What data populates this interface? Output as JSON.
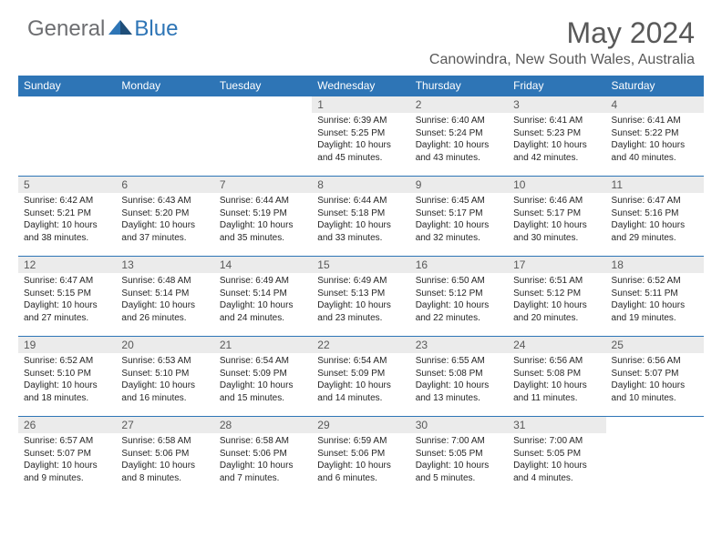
{
  "logo": {
    "general": "General",
    "blue": "Blue"
  },
  "title": "May 2024",
  "location": "Canowindra, New South Wales, Australia",
  "colors": {
    "header_bg": "#2e75b6",
    "header_text": "#ffffff",
    "daynum_bg": "#ebebeb",
    "daynum_text": "#595959",
    "title_text": "#595959",
    "body_text": "#262626",
    "border": "#2e75b6"
  },
  "weekdays": [
    "Sunday",
    "Monday",
    "Tuesday",
    "Wednesday",
    "Thursday",
    "Friday",
    "Saturday"
  ],
  "first_day_index": 3,
  "days": [
    {
      "n": "1",
      "sunrise": "6:39 AM",
      "sunset": "5:25 PM",
      "daylight": "10 hours and 45 minutes."
    },
    {
      "n": "2",
      "sunrise": "6:40 AM",
      "sunset": "5:24 PM",
      "daylight": "10 hours and 43 minutes."
    },
    {
      "n": "3",
      "sunrise": "6:41 AM",
      "sunset": "5:23 PM",
      "daylight": "10 hours and 42 minutes."
    },
    {
      "n": "4",
      "sunrise": "6:41 AM",
      "sunset": "5:22 PM",
      "daylight": "10 hours and 40 minutes."
    },
    {
      "n": "5",
      "sunrise": "6:42 AM",
      "sunset": "5:21 PM",
      "daylight": "10 hours and 38 minutes."
    },
    {
      "n": "6",
      "sunrise": "6:43 AM",
      "sunset": "5:20 PM",
      "daylight": "10 hours and 37 minutes."
    },
    {
      "n": "7",
      "sunrise": "6:44 AM",
      "sunset": "5:19 PM",
      "daylight": "10 hours and 35 minutes."
    },
    {
      "n": "8",
      "sunrise": "6:44 AM",
      "sunset": "5:18 PM",
      "daylight": "10 hours and 33 minutes."
    },
    {
      "n": "9",
      "sunrise": "6:45 AM",
      "sunset": "5:17 PM",
      "daylight": "10 hours and 32 minutes."
    },
    {
      "n": "10",
      "sunrise": "6:46 AM",
      "sunset": "5:17 PM",
      "daylight": "10 hours and 30 minutes."
    },
    {
      "n": "11",
      "sunrise": "6:47 AM",
      "sunset": "5:16 PM",
      "daylight": "10 hours and 29 minutes."
    },
    {
      "n": "12",
      "sunrise": "6:47 AM",
      "sunset": "5:15 PM",
      "daylight": "10 hours and 27 minutes."
    },
    {
      "n": "13",
      "sunrise": "6:48 AM",
      "sunset": "5:14 PM",
      "daylight": "10 hours and 26 minutes."
    },
    {
      "n": "14",
      "sunrise": "6:49 AM",
      "sunset": "5:14 PM",
      "daylight": "10 hours and 24 minutes."
    },
    {
      "n": "15",
      "sunrise": "6:49 AM",
      "sunset": "5:13 PM",
      "daylight": "10 hours and 23 minutes."
    },
    {
      "n": "16",
      "sunrise": "6:50 AM",
      "sunset": "5:12 PM",
      "daylight": "10 hours and 22 minutes."
    },
    {
      "n": "17",
      "sunrise": "6:51 AM",
      "sunset": "5:12 PM",
      "daylight": "10 hours and 20 minutes."
    },
    {
      "n": "18",
      "sunrise": "6:52 AM",
      "sunset": "5:11 PM",
      "daylight": "10 hours and 19 minutes."
    },
    {
      "n": "19",
      "sunrise": "6:52 AM",
      "sunset": "5:10 PM",
      "daylight": "10 hours and 18 minutes."
    },
    {
      "n": "20",
      "sunrise": "6:53 AM",
      "sunset": "5:10 PM",
      "daylight": "10 hours and 16 minutes."
    },
    {
      "n": "21",
      "sunrise": "6:54 AM",
      "sunset": "5:09 PM",
      "daylight": "10 hours and 15 minutes."
    },
    {
      "n": "22",
      "sunrise": "6:54 AM",
      "sunset": "5:09 PM",
      "daylight": "10 hours and 14 minutes."
    },
    {
      "n": "23",
      "sunrise": "6:55 AM",
      "sunset": "5:08 PM",
      "daylight": "10 hours and 13 minutes."
    },
    {
      "n": "24",
      "sunrise": "6:56 AM",
      "sunset": "5:08 PM",
      "daylight": "10 hours and 11 minutes."
    },
    {
      "n": "25",
      "sunrise": "6:56 AM",
      "sunset": "5:07 PM",
      "daylight": "10 hours and 10 minutes."
    },
    {
      "n": "26",
      "sunrise": "6:57 AM",
      "sunset": "5:07 PM",
      "daylight": "10 hours and 9 minutes."
    },
    {
      "n": "27",
      "sunrise": "6:58 AM",
      "sunset": "5:06 PM",
      "daylight": "10 hours and 8 minutes."
    },
    {
      "n": "28",
      "sunrise": "6:58 AM",
      "sunset": "5:06 PM",
      "daylight": "10 hours and 7 minutes."
    },
    {
      "n": "29",
      "sunrise": "6:59 AM",
      "sunset": "5:06 PM",
      "daylight": "10 hours and 6 minutes."
    },
    {
      "n": "30",
      "sunrise": "7:00 AM",
      "sunset": "5:05 PM",
      "daylight": "10 hours and 5 minutes."
    },
    {
      "n": "31",
      "sunrise": "7:00 AM",
      "sunset": "5:05 PM",
      "daylight": "10 hours and 4 minutes."
    }
  ],
  "labels": {
    "sunrise": "Sunrise:",
    "sunset": "Sunset:",
    "daylight": "Daylight:"
  }
}
